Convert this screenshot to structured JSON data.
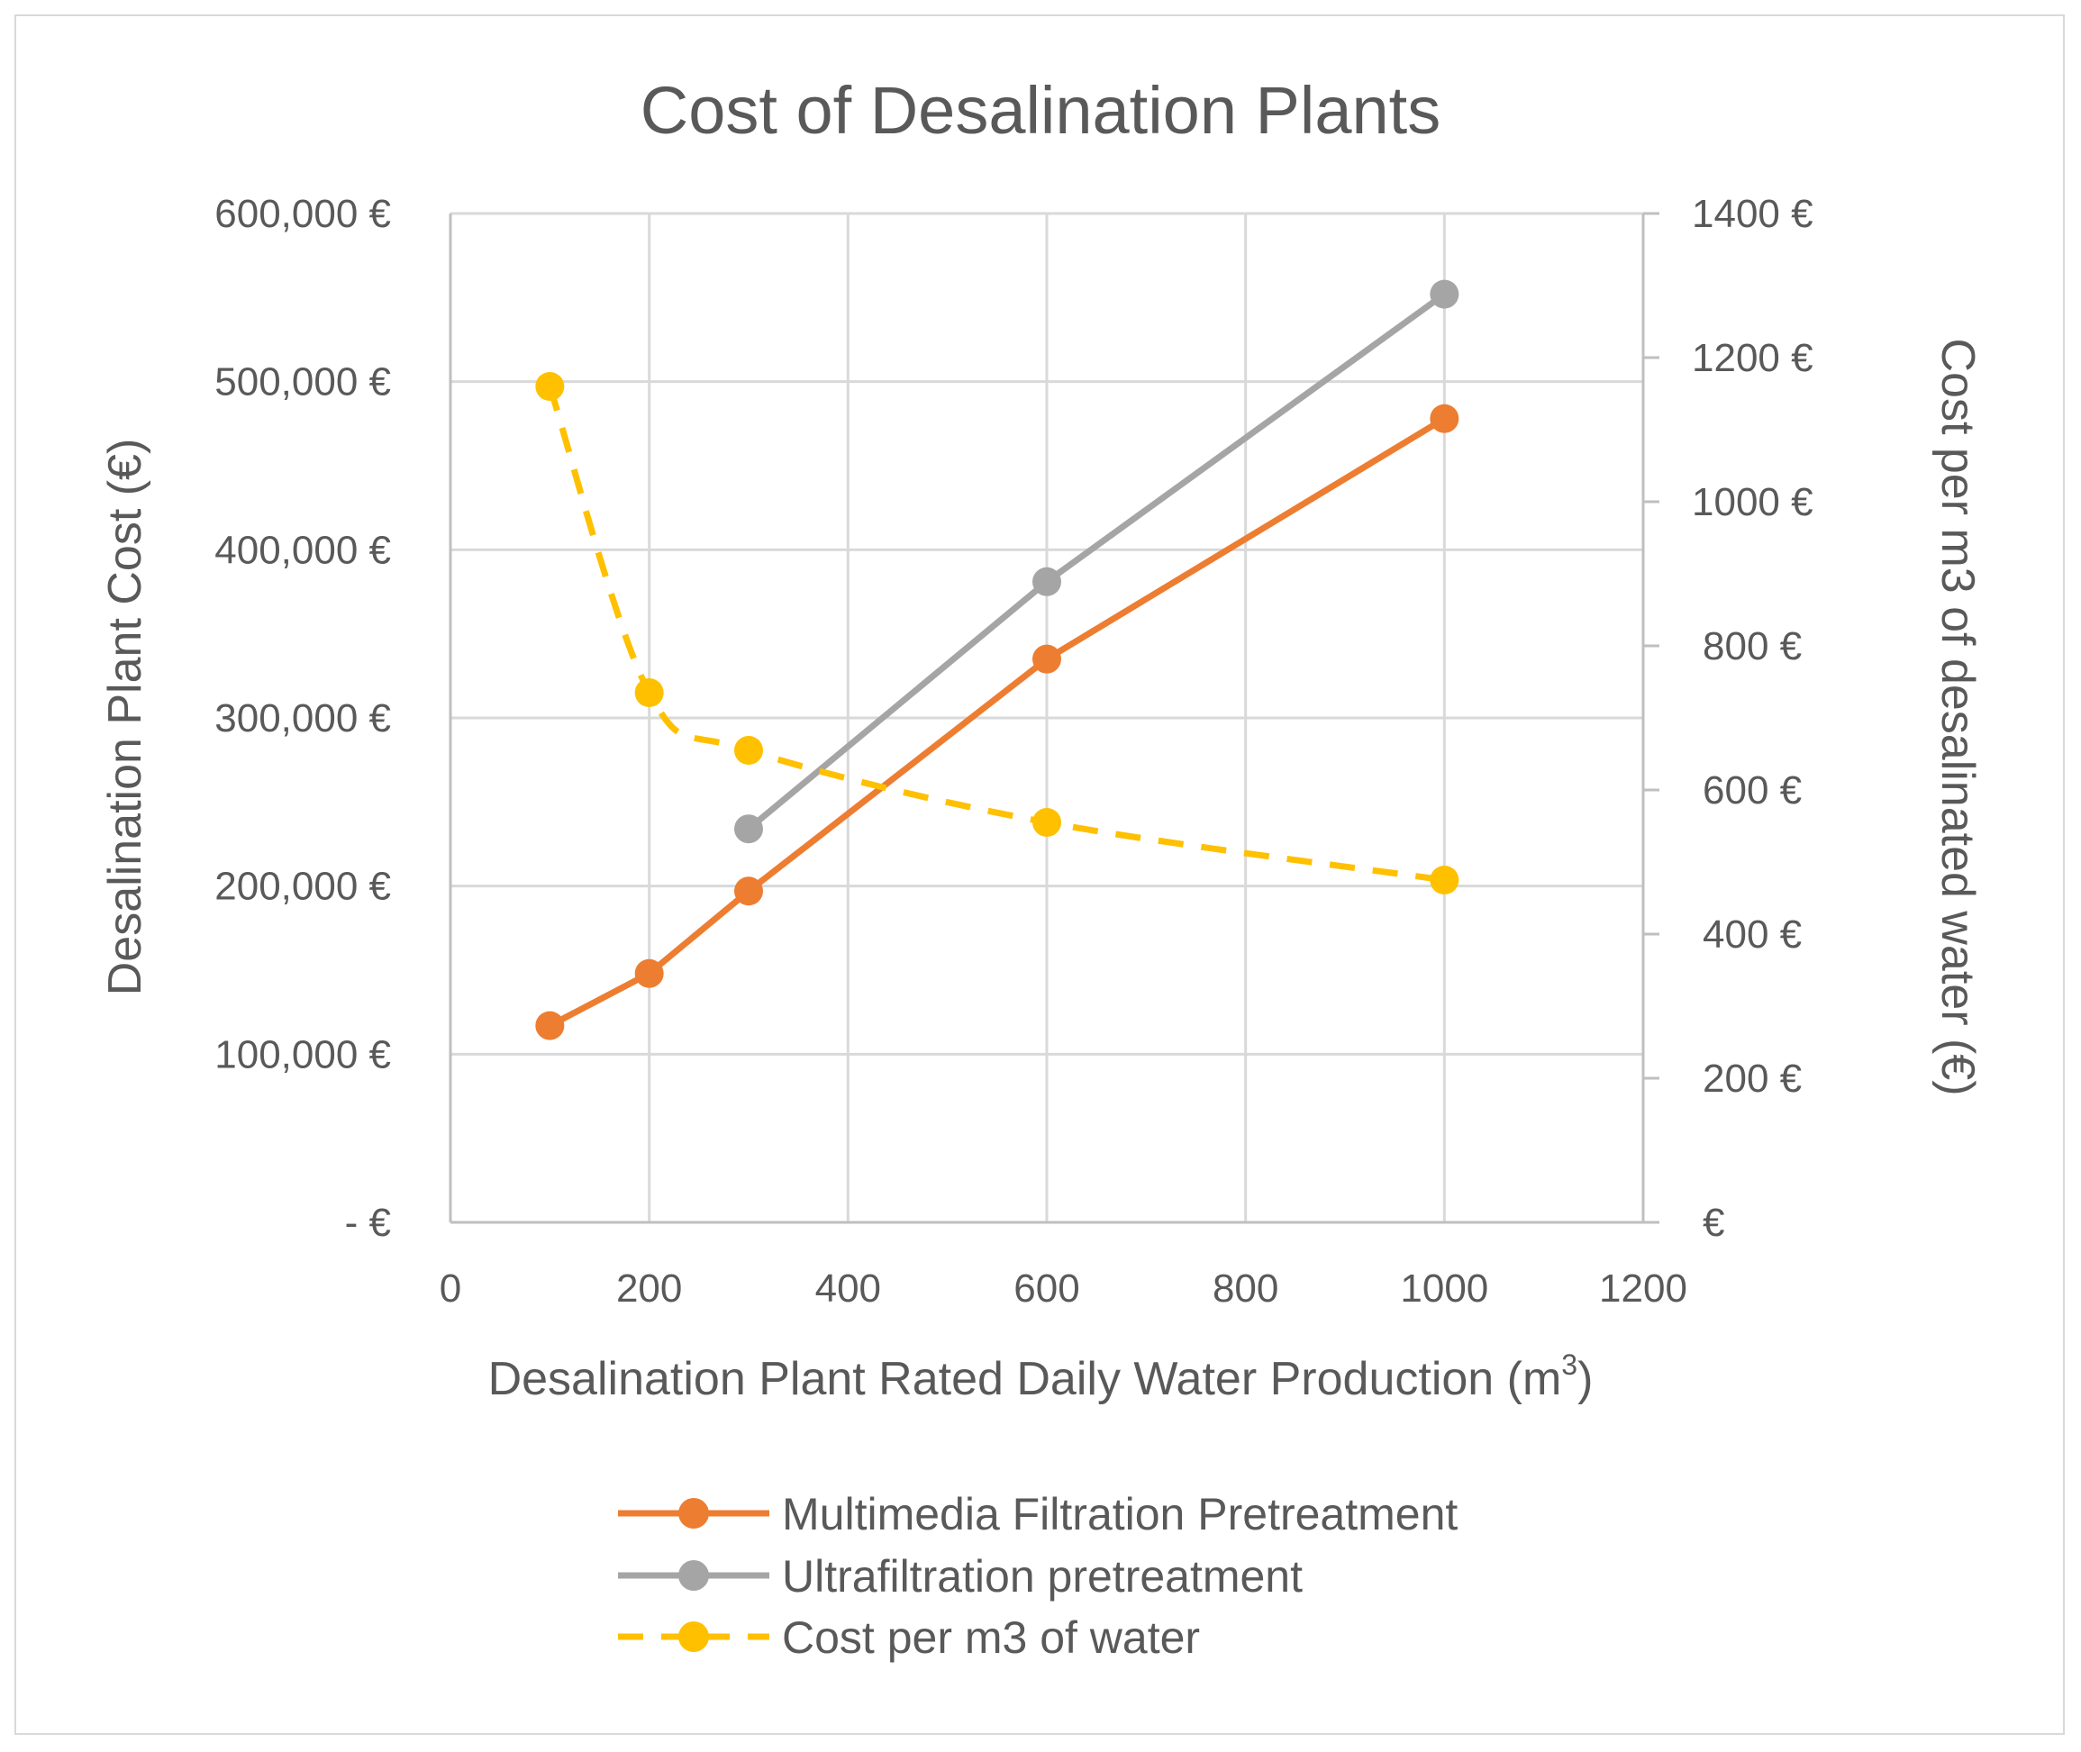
{
  "chart_data": {
    "type": "line",
    "title": "Cost of Desalination Plants",
    "xlabel": "Desalination Plant Rated Daily Water Production (m",
    "xlabel_superscript": "3",
    "xlabel_suffix": ")",
    "ylabel_left": "Desalination Plant Cost (€)",
    "ylabel_right": "Cost per m3 of desalinated water (€)",
    "xlim": [
      0,
      1200
    ],
    "ylim_left": [
      0,
      600000
    ],
    "ylim_right": [
      0,
      1400
    ],
    "grid": true,
    "legend_position": "bottom",
    "x_ticks": [
      "0",
      "200",
      "400",
      "600",
      "800",
      "1000",
      "1200"
    ],
    "x_tick_values": [
      0,
      200,
      400,
      600,
      800,
      1000,
      1200
    ],
    "y_left_ticks": [
      "-   €",
      "100,000 €",
      "200,000 €",
      "300,000 €",
      "400,000 €",
      "500,000 €",
      "600,000 €"
    ],
    "y_left_tick_values": [
      0,
      100000,
      200000,
      300000,
      400000,
      500000,
      600000
    ],
    "y_right_ticks": [
      "€",
      "200 €",
      "400 €",
      "600 €",
      "800 €",
      "1000 €",
      "1200 €",
      "1400 €"
    ],
    "y_right_tick_values": [
      0,
      200,
      400,
      600,
      800,
      1000,
      1200,
      1400
    ],
    "series": [
      {
        "name": "Multimedia Filtration Pretreatment",
        "axis": "left",
        "color": "#ed7d31",
        "dashed": false,
        "x": [
          100,
          200,
          300,
          600,
          1000
        ],
        "values": [
          117000,
          148000,
          197000,
          335000,
          478000
        ]
      },
      {
        "name": "Ultrafiltration pretreatment",
        "axis": "left",
        "color": "#a5a5a5",
        "dashed": false,
        "x": [
          300,
          600,
          1000
        ],
        "values": [
          234000,
          381000,
          552000
        ]
      },
      {
        "name": "Cost per m3 of water",
        "axis": "right",
        "color": "#ffc000",
        "dashed": true,
        "x": [
          100,
          200,
          300,
          600,
          1000
        ],
        "values": [
          1160,
          735,
          655,
          555,
          475
        ]
      }
    ]
  }
}
